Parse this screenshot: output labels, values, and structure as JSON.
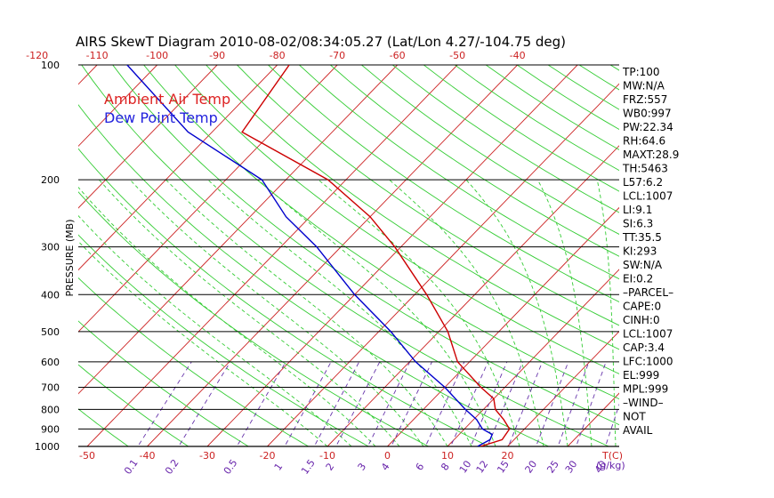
{
  "chart_data": {
    "type": "line",
    "title": "AIRS SkewT Diagram 2010-08-02/08:34:05.27 (Lat/Lon 4.27/-104.75 deg)",
    "ylabel": "PRESSURE (MB)",
    "xlabel": "T(C)",
    "mixing_ratio_unit": "(g/kg)",
    "ylim": [
      1000,
      100
    ],
    "xlim_bottom": [
      -50,
      20
    ],
    "xlim_top": [
      -120,
      -40
    ],
    "pressure_levels": [
      100,
      200,
      300,
      400,
      500,
      600,
      700,
      800,
      900,
      1000
    ],
    "top_ticks": [
      "-120",
      "-110",
      "-100",
      "-90",
      "-80",
      "-70",
      "-60",
      "-50",
      "-40"
    ],
    "bottom_ticks": [
      "-50",
      "-40",
      "-30",
      "-20",
      "-10",
      "0",
      "10",
      "20"
    ],
    "mixing_ratio_labels": [
      "0.1",
      "0.2",
      "0.5",
      "1",
      "1.5",
      "2",
      "3",
      "4",
      "6",
      "8",
      "10",
      "12",
      "15",
      "20",
      "25",
      "30",
      "40"
    ],
    "legend": [
      {
        "name": "Ambient Air Temp",
        "color": "#dd2222"
      },
      {
        "name": "Dew Point Temp",
        "color": "#2222dd"
      }
    ],
    "series": [
      {
        "name": "Ambient Air Temp",
        "color": "#cc0000",
        "points": [
          {
            "p": 1000,
            "t": 15.5
          },
          {
            "p": 960,
            "t": 18
          },
          {
            "p": 900,
            "t": 17.5
          },
          {
            "p": 850,
            "t": 15
          },
          {
            "p": 800,
            "t": 12
          },
          {
            "p": 750,
            "t": 10
          },
          {
            "p": 700,
            "t": 6
          },
          {
            "p": 600,
            "t": -2
          },
          {
            "p": 500,
            "t": -8.5
          },
          {
            "p": 400,
            "t": -18
          },
          {
            "p": 300,
            "t": -31
          },
          {
            "p": 250,
            "t": -40
          },
          {
            "p": 200,
            "t": -53
          },
          {
            "p": 150,
            "t": -75
          },
          {
            "p": 100,
            "t": -78
          }
        ]
      },
      {
        "name": "Dew Point Temp",
        "color": "#0000cc",
        "points": [
          {
            "p": 1000,
            "t": 15
          },
          {
            "p": 960,
            "t": 16
          },
          {
            "p": 930,
            "t": 15.5
          },
          {
            "p": 900,
            "t": 13
          },
          {
            "p": 850,
            "t": 10.5
          },
          {
            "p": 800,
            "t": 7
          },
          {
            "p": 700,
            "t": 0
          },
          {
            "p": 600,
            "t": -9
          },
          {
            "p": 500,
            "t": -18
          },
          {
            "p": 400,
            "t": -30
          },
          {
            "p": 300,
            "t": -44
          },
          {
            "p": 250,
            "t": -54
          },
          {
            "p": 200,
            "t": -64
          },
          {
            "p": 150,
            "t": -84
          },
          {
            "p": 100,
            "t": -105
          }
        ]
      }
    ],
    "indices": [
      "TP:100",
      "MW:N/A",
      "FRZ:557",
      "WB0:997",
      "PW:22.34",
      "RH:64.6",
      "MAXT:28.9",
      "TH:5463",
      "L57:6.2",
      "LCL:1007",
      "LI:9.1",
      "SI:6.3",
      "TT:35.5",
      "KI:293",
      "SW:N/A",
      "EI:0.2",
      "–PARCEL–",
      "CAPE:0",
      "CINH:0",
      "LCL:1007",
      "CAP:3.4",
      "LFC:1000",
      "EL:999",
      "MPL:999",
      "–WIND–",
      "NOT",
      "AVAIL"
    ],
    "colors": {
      "isotherm": "#cc2222",
      "dry_adiabat": "#33cc33",
      "moist_adiabat": "#33cc33",
      "mixing_ratio": "#6633aa",
      "isobar": "#000000",
      "mixing_label": "#6622aa"
    }
  }
}
